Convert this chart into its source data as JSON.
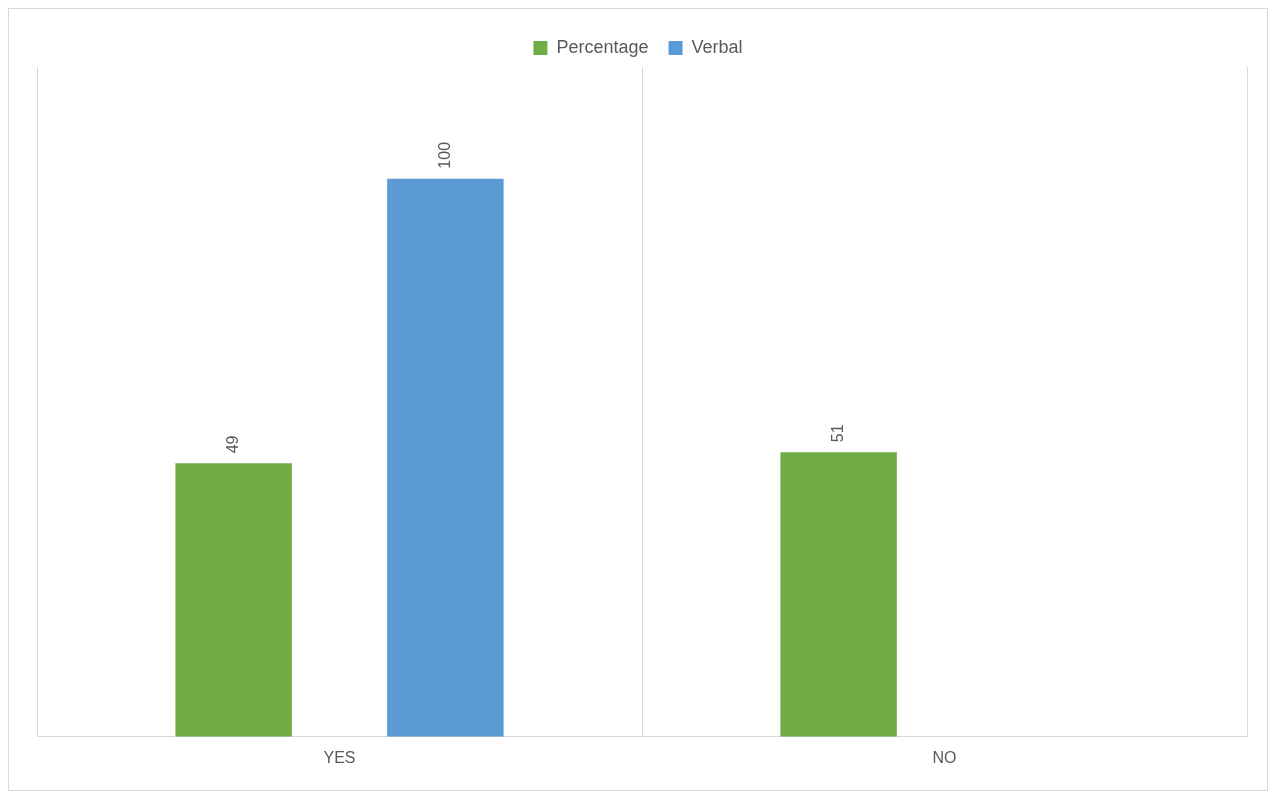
{
  "chart_data": {
    "type": "bar",
    "categories": [
      "YES",
      "NO"
    ],
    "series": [
      {
        "name": "Percentage",
        "color": "#70ad47",
        "values": [
          49,
          51
        ]
      },
      {
        "name": "Verbal",
        "color": "#5b9bd5",
        "values": [
          100,
          null
        ]
      }
    ],
    "ylim": [
      0,
      120
    ],
    "data_labels": true,
    "grid": "x",
    "legend": "top"
  }
}
